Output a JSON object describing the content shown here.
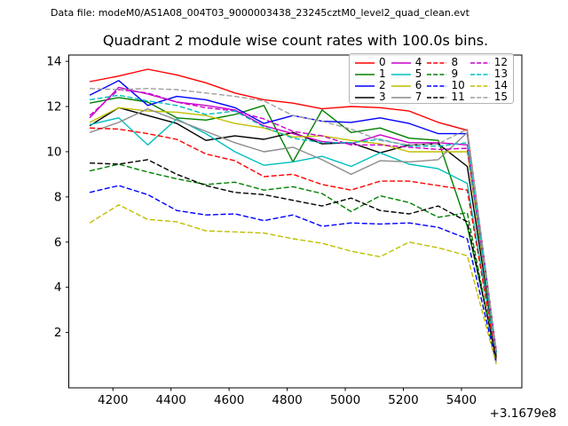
{
  "figure": {
    "datafile": "Data file: modeM0/AS1A08_004T03_9000003438_23245cztM0_level2_quad_clean.evt"
  },
  "chart_data": {
    "type": "line",
    "title": "Quadrant 2 module wise count rates with 100.0s bins.",
    "xlabel": "",
    "ylabel": "",
    "grid": false,
    "legend_position": "upper right",
    "x_offset_label": "+3.1679e8",
    "x_ticks": [
      4200,
      4400,
      4600,
      4800,
      5000,
      5200,
      5400
    ],
    "y_ticks": [
      2,
      4,
      6,
      8,
      10,
      12,
      14
    ],
    "xlim": [
      4048,
      5608
    ],
    "ylim": [
      -0.45,
      14.28
    ],
    "x": [
      4120,
      4220,
      4320,
      4420,
      4520,
      4620,
      4720,
      4820,
      4920,
      5020,
      5120,
      5220,
      5320,
      5420,
      5520
    ],
    "series": [
      {
        "name": "0",
        "color": "#ff0000",
        "style": "solid",
        "values": [
          13.1,
          13.35,
          13.65,
          13.4,
          13.05,
          12.6,
          12.3,
          12.15,
          11.9,
          12.0,
          11.95,
          11.8,
          11.3,
          10.95,
          1.15
        ]
      },
      {
        "name": "1",
        "color": "#008000",
        "style": "solid",
        "values": [
          12.15,
          12.4,
          12.2,
          11.5,
          11.4,
          11.65,
          12.05,
          9.55,
          11.85,
          10.85,
          11.05,
          10.6,
          10.5,
          6.7,
          0.95
        ]
      },
      {
        "name": "2",
        "color": "#0000ff",
        "style": "solid",
        "values": [
          12.5,
          13.15,
          12.05,
          12.45,
          12.3,
          11.95,
          11.25,
          11.6,
          11.35,
          11.3,
          11.5,
          11.25,
          10.8,
          10.8,
          1.1
        ]
      },
      {
        "name": "3",
        "color": "#000000",
        "style": "solid",
        "values": [
          11.15,
          11.95,
          11.6,
          11.25,
          10.5,
          10.7,
          10.55,
          10.85,
          10.35,
          10.4,
          9.95,
          10.3,
          10.35,
          9.35,
          1.0
        ]
      },
      {
        "name": "4",
        "color": "#cc00cc",
        "style": "solid",
        "values": [
          11.5,
          12.85,
          12.55,
          12.2,
          12.05,
          11.85,
          11.15,
          10.8,
          10.45,
          10.35,
          10.75,
          10.4,
          10.4,
          10.3,
          1.2
        ]
      },
      {
        "name": "5",
        "color": "#00bfbf",
        "style": "solid",
        "values": [
          11.2,
          11.5,
          10.3,
          11.45,
          10.8,
          10.0,
          9.4,
          9.55,
          9.8,
          9.35,
          9.95,
          9.45,
          9.25,
          8.6,
          0.85
        ]
      },
      {
        "name": "6",
        "color": "#bfbf00",
        "style": "solid",
        "values": [
          11.3,
          11.95,
          11.8,
          11.75,
          11.6,
          11.25,
          11.05,
          10.65,
          10.7,
          10.5,
          10.35,
          10.0,
          10.0,
          10.0,
          1.05
        ]
      },
      {
        "name": "7",
        "color": "#8c8c8c",
        "style": "solid",
        "values": [
          10.85,
          11.3,
          11.9,
          11.4,
          10.9,
          10.4,
          10.0,
          10.2,
          9.65,
          9.0,
          9.6,
          9.55,
          9.65,
          10.85,
          0.9
        ]
      },
      {
        "name": "8",
        "color": "#ff0000",
        "style": "dashed",
        "values": [
          11.05,
          11.0,
          10.8,
          10.55,
          9.9,
          9.6,
          8.9,
          9.0,
          8.55,
          8.3,
          8.7,
          8.7,
          8.5,
          8.3,
          0.8
        ]
      },
      {
        "name": "9",
        "color": "#008000",
        "style": "dashed",
        "values": [
          9.15,
          9.45,
          9.1,
          8.8,
          8.55,
          8.65,
          8.3,
          8.45,
          8.15,
          7.35,
          8.05,
          7.75,
          7.1,
          7.3,
          0.7
        ]
      },
      {
        "name": "10",
        "color": "#0000ff",
        "style": "dashed",
        "values": [
          8.2,
          8.5,
          8.1,
          7.4,
          7.2,
          7.25,
          6.95,
          7.2,
          6.7,
          6.85,
          6.8,
          6.85,
          6.65,
          6.15,
          0.65
        ]
      },
      {
        "name": "11",
        "color": "#000000",
        "style": "dashed",
        "values": [
          9.5,
          9.45,
          9.65,
          9.0,
          8.5,
          8.2,
          8.1,
          7.85,
          7.6,
          7.95,
          7.4,
          7.25,
          7.6,
          6.9,
          0.85
        ]
      },
      {
        "name": "12",
        "color": "#cc00cc",
        "style": "dashed",
        "values": [
          11.6,
          12.75,
          12.6,
          12.2,
          11.95,
          11.8,
          11.45,
          10.9,
          10.7,
          10.3,
          10.3,
          10.2,
          10.1,
          10.15,
          1.15
        ]
      },
      {
        "name": "13",
        "color": "#00bfbf",
        "style": "dashed",
        "values": [
          12.3,
          12.5,
          12.25,
          12.05,
          11.65,
          11.8,
          11.1,
          10.6,
          10.4,
          10.4,
          10.55,
          10.25,
          10.25,
          10.4,
          1.1
        ]
      },
      {
        "name": "14",
        "color": "#bfbf00",
        "style": "dashed",
        "values": [
          6.85,
          7.65,
          7.0,
          6.9,
          6.5,
          6.45,
          6.4,
          6.15,
          5.95,
          5.6,
          5.35,
          6.0,
          5.75,
          5.4,
          0.6
        ]
      },
      {
        "name": "15",
        "color": "#a0a0a0",
        "style": "dashed",
        "values": [
          12.8,
          12.75,
          12.8,
          12.75,
          12.6,
          12.45,
          12.25,
          11.6,
          11.35,
          11.0,
          10.5,
          10.3,
          10.35,
          11.0,
          1.2
        ]
      }
    ]
  }
}
